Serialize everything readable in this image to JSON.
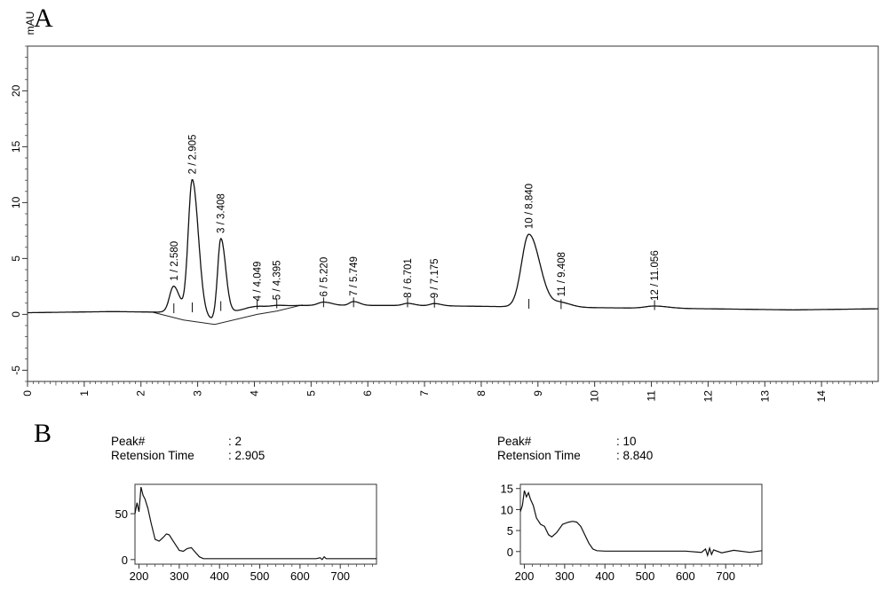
{
  "panel_labels": {
    "a": "A",
    "b": "B"
  },
  "spectrum_info": [
    {
      "peak_label": "Peak#",
      "peak_value": ": 2",
      "time_label": "Retension Time",
      "time_value": ": 2.905"
    },
    {
      "peak_label": "Peak#",
      "peak_value": ": 10",
      "time_label": "Retension Time",
      "time_value": ": 8.840"
    }
  ],
  "chart_data": [
    {
      "type": "line",
      "ylabel": "mAU",
      "xlabel": "",
      "xlim": [
        0,
        15
      ],
      "ylim": [
        -6,
        24
      ],
      "x_ticks": [
        0,
        1,
        2,
        3,
        4,
        5,
        6,
        7,
        8,
        9,
        10,
        11,
        12,
        13,
        14
      ],
      "y_ticks": [
        -5,
        0,
        5,
        10,
        15,
        20
      ],
      "baseline": [
        [
          0,
          0.15
        ],
        [
          1.5,
          0.25
        ],
        [
          2.3,
          0.2
        ],
        [
          4.8,
          0.8
        ],
        [
          6.5,
          0.8
        ],
        [
          7.5,
          0.75
        ],
        [
          8.3,
          0.7
        ],
        [
          10.0,
          0.6
        ],
        [
          12.0,
          0.5
        ],
        [
          13.5,
          0.4
        ],
        [
          15.0,
          0.5
        ]
      ],
      "peaks": [
        {
          "label": "1 / 2.580",
          "rt": 2.58,
          "height": 2.4,
          "width": 0.09
        },
        {
          "label": "2 / 2.905",
          "rt": 2.905,
          "height": 12.3,
          "width": 0.09
        },
        {
          "label": "3 / 3.408",
          "rt": 3.408,
          "height": 6.9,
          "width": 0.07
        },
        {
          "label": "4 / 4.049",
          "rt": 4.049,
          "height": 0.1,
          "width": 0.12
        },
        {
          "label": "5 / 4.395",
          "rt": 4.395,
          "height": 0.1,
          "width": 0.12
        },
        {
          "label": "6 / 5.220",
          "rt": 5.22,
          "height": 0.3,
          "width": 0.12
        },
        {
          "label": "7 / 5.749",
          "rt": 5.749,
          "height": 0.35,
          "width": 0.09
        },
        {
          "label": "8 / 6.701",
          "rt": 6.701,
          "height": 0.2,
          "width": 0.1
        },
        {
          "label": "9 / 7.175",
          "rt": 7.175,
          "height": 0.2,
          "width": 0.1
        },
        {
          "label": "10 / 8.840",
          "rt": 8.84,
          "height": 6.5,
          "width": 0.16
        },
        {
          "label": "11 / 9.408",
          "rt": 9.408,
          "height": 0.4,
          "width": 0.15
        },
        {
          "label": "12 / 11.056",
          "rt": 11.056,
          "height": 0.2,
          "width": 0.2
        }
      ],
      "integration_baseline": [
        [
          2.2,
          0.2
        ],
        [
          2.75,
          -0.5
        ],
        [
          3.3,
          -0.9
        ],
        [
          4.05,
          0.0
        ],
        [
          4.4,
          0.3
        ],
        [
          4.85,
          0.85
        ]
      ]
    },
    {
      "type": "line",
      "title": "",
      "xlim": [
        190,
        790
      ],
      "ylim": [
        -5,
        82
      ],
      "x_ticks": [
        200,
        300,
        400,
        500,
        600,
        700
      ],
      "y_ticks": [
        0,
        50
      ],
      "points": [
        [
          190,
          50
        ],
        [
          195,
          62
        ],
        [
          200,
          52
        ],
        [
          205,
          79
        ],
        [
          210,
          70
        ],
        [
          215,
          66
        ],
        [
          222,
          56
        ],
        [
          230,
          40
        ],
        [
          240,
          22
        ],
        [
          250,
          20
        ],
        [
          260,
          24
        ],
        [
          268,
          28
        ],
        [
          275,
          27
        ],
        [
          285,
          20
        ],
        [
          300,
          10
        ],
        [
          310,
          9
        ],
        [
          320,
          12
        ],
        [
          330,
          13
        ],
        [
          340,
          8
        ],
        [
          350,
          3
        ],
        [
          360,
          1
        ],
        [
          380,
          1
        ],
        [
          450,
          1
        ],
        [
          500,
          1
        ],
        [
          600,
          1
        ],
        [
          640,
          1
        ],
        [
          650,
          2
        ],
        [
          655,
          0
        ],
        [
          660,
          3
        ],
        [
          665,
          1
        ],
        [
          700,
          1
        ],
        [
          790,
          1
        ]
      ]
    },
    {
      "type": "line",
      "title": "",
      "xlim": [
        190,
        790
      ],
      "ylim": [
        -3,
        16
      ],
      "x_ticks": [
        200,
        300,
        400,
        500,
        600,
        700
      ],
      "y_ticks": [
        0,
        5,
        10,
        15
      ],
      "points": [
        [
          190,
          9.5
        ],
        [
          195,
          11
        ],
        [
          200,
          14.5
        ],
        [
          205,
          13
        ],
        [
          210,
          14
        ],
        [
          215,
          12.5
        ],
        [
          222,
          11
        ],
        [
          230,
          8
        ],
        [
          240,
          6.5
        ],
        [
          250,
          6
        ],
        [
          260,
          4
        ],
        [
          268,
          3.5
        ],
        [
          280,
          4.5
        ],
        [
          295,
          6.5
        ],
        [
          310,
          7
        ],
        [
          320,
          7.2
        ],
        [
          330,
          7
        ],
        [
          340,
          6
        ],
        [
          350,
          4
        ],
        [
          360,
          2
        ],
        [
          370,
          0.6
        ],
        [
          380,
          0.2
        ],
        [
          400,
          0.1
        ],
        [
          500,
          0.1
        ],
        [
          600,
          0.1
        ],
        [
          640,
          -0.2
        ],
        [
          650,
          0.6
        ],
        [
          655,
          -0.9
        ],
        [
          660,
          0.8
        ],
        [
          665,
          -0.7
        ],
        [
          670,
          0.4
        ],
        [
          690,
          -0.3
        ],
        [
          720,
          0.3
        ],
        [
          760,
          -0.2
        ],
        [
          790,
          0.2
        ]
      ]
    }
  ]
}
